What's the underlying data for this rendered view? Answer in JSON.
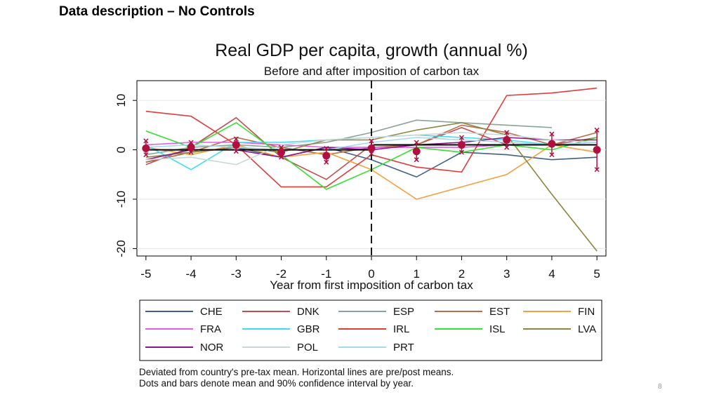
{
  "slide": {
    "title": "Data description – No Controls",
    "page_number": "8"
  },
  "chart_data": {
    "type": "line",
    "title": "Real GDP per capita, growth (annual %)",
    "subtitle": "Before and after imposition of carbon tax",
    "xlabel": "Year from first imposition of carbon tax",
    "ylabel": "",
    "x": [
      -5,
      -4,
      -3,
      -2,
      -1,
      0,
      1,
      2,
      3,
      4,
      5
    ],
    "xticks": [
      "-5",
      "-4",
      "-3",
      "-2",
      "-1",
      "0",
      "1",
      "2",
      "3",
      "4",
      "5"
    ],
    "yticks": [
      10,
      0,
      -10,
      -20
    ],
    "ytick_labels": [
      "10",
      "0",
      "-10",
      "-20"
    ],
    "ylim": [
      -21.5,
      14
    ],
    "xlim": [
      -5.2,
      5.2
    ],
    "vline_at": 0,
    "series": [
      {
        "name": "CHE",
        "color": "#3e6283",
        "values": [
          -2.5,
          -0.5,
          0.5,
          -1.5,
          0.5,
          -2.0,
          -5.5,
          -0.5,
          -1.0,
          -2.0,
          -1.5
        ]
      },
      {
        "name": "DNK",
        "color": "#c05050",
        "values": [
          -3.0,
          0.5,
          6.5,
          -1.5,
          -6.0,
          1.0,
          1.0,
          4.5,
          1.0,
          1.0,
          2.5
        ]
      },
      {
        "name": "ESP",
        "color": "#8aa397",
        "values": [
          -1.0,
          0.5,
          1.0,
          0.5,
          1.5,
          3.5,
          6.0,
          5.5,
          5.0,
          4.5,
          null
        ]
      },
      {
        "name": "EST",
        "color": "#b86e4b",
        "values": [
          -2.5,
          -0.5,
          2.5,
          0.5,
          -1.0,
          0.5,
          1.0,
          5.0,
          3.5,
          1.0,
          3.5
        ]
      },
      {
        "name": "FIN",
        "color": "#f4a040",
        "values": [
          0.5,
          -1.0,
          1.0,
          -1.5,
          -0.5,
          -4.0,
          -10.0,
          -7.5,
          -5.0,
          1.0,
          -0.5
        ]
      },
      {
        "name": "FRA",
        "color": "#e65ce6",
        "values": [
          1.0,
          1.5,
          1.5,
          1.0,
          0.5,
          0.5,
          0.5,
          0.5,
          1.0,
          1.0,
          1.0
        ]
      },
      {
        "name": "GBR",
        "color": "#3fdcef",
        "values": [
          1.0,
          -4.0,
          1.5,
          1.5,
          2.0,
          2.5,
          3.0,
          2.5,
          2.0,
          1.0,
          1.5
        ]
      },
      {
        "name": "IRL",
        "color": "#e03c3c",
        "values": [
          7.8,
          6.8,
          1.0,
          -7.5,
          -7.5,
          -1.0,
          -3.5,
          -4.5,
          11.0,
          11.5,
          12.5
        ]
      },
      {
        "name": "ISL",
        "color": "#33e033",
        "values": [
          3.8,
          0.5,
          5.5,
          -1.0,
          -8.0,
          -4.0,
          0.5,
          -0.5,
          1.0,
          0.0,
          2.5
        ]
      },
      {
        "name": "LVA",
        "color": "#8e8640",
        "values": [
          -1.5,
          -0.5,
          0.5,
          -0.5,
          2.0,
          2.0,
          4.0,
          5.5,
          3.0,
          -9.0,
          -20.5
        ]
      },
      {
        "name": "NOR",
        "color": "#8a178a",
        "values": [
          -2.0,
          0.0,
          0.0,
          -1.5,
          0.5,
          0.0,
          1.0,
          1.5,
          2.5,
          2.0,
          2.0
        ]
      },
      {
        "name": "POL",
        "color": "#c8d8d8",
        "values": [
          -2.0,
          -1.5,
          -3.0,
          1.0,
          2.0,
          2.5,
          3.0,
          3.5,
          3.0,
          2.0,
          1.5
        ]
      },
      {
        "name": "PRT",
        "color": "#a8d8f0",
        "values": [
          0.5,
          1.0,
          0.5,
          0.0,
          0.0,
          1.5,
          2.5,
          2.0,
          1.5,
          1.0,
          1.5
        ]
      }
    ],
    "mean_ci": {
      "color": "#b01040",
      "means": [
        0.3,
        0.5,
        1.0,
        -0.5,
        -1.2,
        0.3,
        -0.3,
        1.0,
        2.0,
        1.2,
        0.0
      ],
      "ci_low": [
        -1.0,
        -0.5,
        -0.3,
        -1.5,
        -2.5,
        -0.8,
        -2.0,
        -0.5,
        0.5,
        -1.0,
        -4.0
      ],
      "ci_high": [
        1.8,
        1.5,
        2.2,
        0.5,
        0.3,
        1.8,
        1.5,
        2.5,
        3.5,
        3.2,
        4.0
      ]
    },
    "pre_post_means": {
      "color": "#000000",
      "pre": 0.0,
      "post": 1.0
    },
    "notes": [
      "Deviated from country's pre-tax mean. Horizontal lines are pre/post means.",
      "Dots and bars denote mean and 90% confidence interval by year."
    ]
  }
}
